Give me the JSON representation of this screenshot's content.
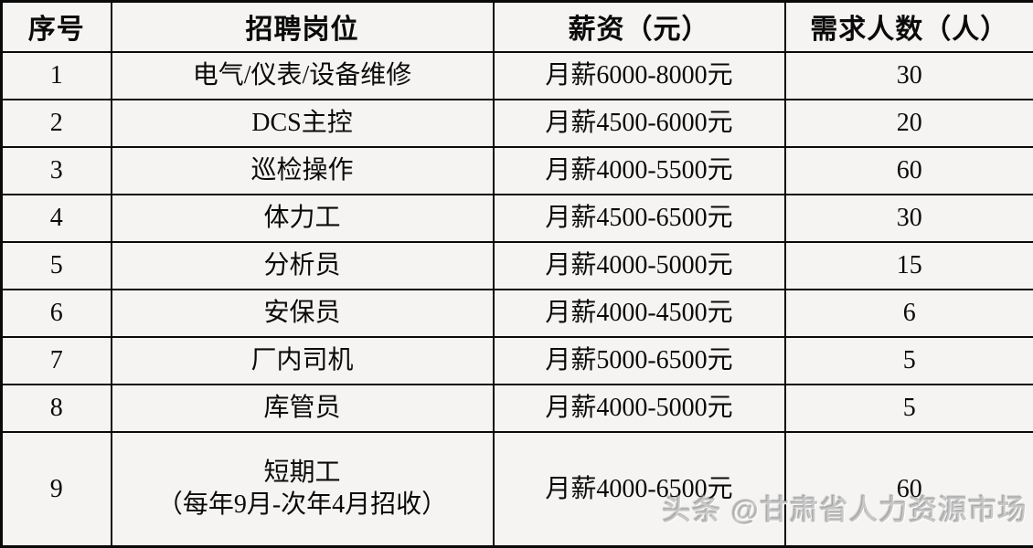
{
  "chart_data": {
    "type": "table",
    "columns": [
      "序号",
      "招聘岗位",
      "薪资（元）",
      "需求人数（人）"
    ],
    "rows": [
      [
        "1",
        "电气/仪表/设备维修",
        "月薪6000-8000元",
        "30"
      ],
      [
        "2",
        "DCS主控",
        "月薪4500-6000元",
        "20"
      ],
      [
        "3",
        "巡检操作",
        "月薪4000-5500元",
        "60"
      ],
      [
        "4",
        "体力工",
        "月薪4500-6500元",
        "30"
      ],
      [
        "5",
        "分析员",
        "月薪4000-5000元",
        "15"
      ],
      [
        "6",
        "安保员",
        "月薪4000-4500元",
        "6"
      ],
      [
        "7",
        "厂内司机",
        "月薪5000-6500元",
        "5"
      ],
      [
        "8",
        "库管员",
        "月薪4000-5000元",
        "5"
      ],
      [
        "9",
        "短期工（每年9月-次年4月招收）",
        "月薪4000-6500元",
        "60"
      ]
    ]
  },
  "table": {
    "headers": {
      "no": "序号",
      "position": "招聘岗位",
      "salary": "薪资（元）",
      "count": "需求人数（人）"
    },
    "rows": [
      {
        "no": "1",
        "position": "电气/仪表/设备维修",
        "salary": "月薪6000-8000元",
        "count": "30"
      },
      {
        "no": "2",
        "position": "DCS主控",
        "salary": "月薪4500-6000元",
        "count": "20"
      },
      {
        "no": "3",
        "position": "巡检操作",
        "salary": "月薪4000-5500元",
        "count": "60"
      },
      {
        "no": "4",
        "position": "体力工",
        "salary": "月薪4500-6500元",
        "count": "30"
      },
      {
        "no": "5",
        "position": "分析员",
        "salary": "月薪4000-5000元",
        "count": "15"
      },
      {
        "no": "6",
        "position": "安保员",
        "salary": "月薪4000-4500元",
        "count": "6"
      },
      {
        "no": "7",
        "position": "厂内司机",
        "salary": "月薪5000-6500元",
        "count": "5"
      },
      {
        "no": "8",
        "position": "库管员",
        "salary": "月薪4000-5000元",
        "count": "5"
      },
      {
        "no": "9",
        "position_line1": "短期工",
        "position_line2": "（每年9月-次年4月招收）",
        "salary": "月薪4000-6500元",
        "count": "60"
      }
    ]
  },
  "watermark": {
    "text": "头条 @甘肃省人力资源市场"
  },
  "colors": {
    "background": "#f5f4f2",
    "border": "#0a0a0a",
    "text": "#000000",
    "watermark": "#919191"
  }
}
